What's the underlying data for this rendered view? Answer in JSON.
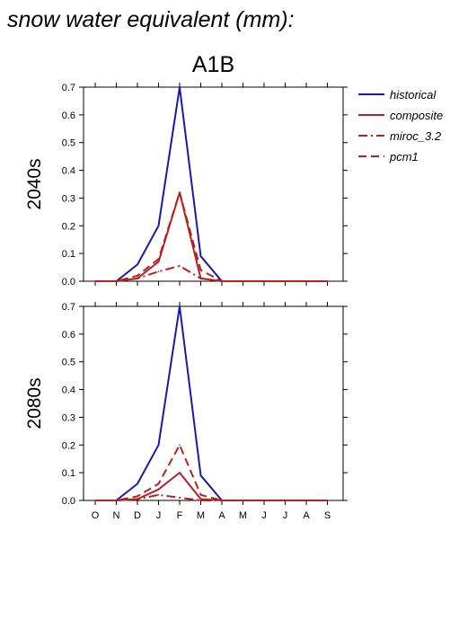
{
  "figure_title": "snow water equivalent (mm):",
  "chart_data": {
    "type": "line",
    "title": "A1B",
    "months": [
      "O",
      "N",
      "D",
      "J",
      "F",
      "M",
      "A",
      "M",
      "J",
      "J",
      "A",
      "S"
    ],
    "ylim": [
      0,
      0.7
    ],
    "yticks": [
      "0.0",
      "0.1",
      "0.2",
      "0.3",
      "0.4",
      "0.5",
      "0.6",
      "0.7"
    ],
    "legend": {
      "placement": "right",
      "entries": [
        {
          "name": "historical",
          "color": "#1a1aa6",
          "dash": "solid"
        },
        {
          "name": "composite",
          "color": "#b22222",
          "dash": "solid"
        },
        {
          "name": "miroc_3.2",
          "color": "#b22222",
          "dash": "dashdot"
        },
        {
          "name": "pcm1",
          "color": "#b22222",
          "dash": "dashed"
        }
      ]
    },
    "panels": [
      {
        "label": "2040s",
        "series": [
          {
            "name": "historical",
            "values": [
              0,
              0,
              0.06,
              0.2,
              0.7,
              0.09,
              0,
              0,
              0,
              0,
              0,
              0
            ]
          },
          {
            "name": "composite",
            "values": [
              0,
              0,
              0.01,
              0.07,
              0.32,
              0.01,
              0,
              0,
              0,
              0,
              0,
              0
            ]
          },
          {
            "name": "miroc_3.2",
            "values": [
              0,
              0,
              0.01,
              0.035,
              0.055,
              0.01,
              0,
              0,
              0,
              0,
              0,
              0
            ]
          },
          {
            "name": "pcm1",
            "values": [
              0,
              0,
              0.02,
              0.08,
              0.32,
              0.04,
              0,
              0,
              0,
              0,
              0,
              0
            ]
          }
        ]
      },
      {
        "label": "2080s",
        "series": [
          {
            "name": "historical",
            "values": [
              0,
              0,
              0.06,
              0.2,
              0.7,
              0.09,
              0,
              0,
              0,
              0,
              0,
              0
            ]
          },
          {
            "name": "composite",
            "values": [
              0,
              0,
              0.005,
              0.04,
              0.1,
              0.005,
              0,
              0,
              0,
              0,
              0,
              0
            ]
          },
          {
            "name": "miroc_3.2",
            "values": [
              0,
              0,
              0.005,
              0.02,
              0.01,
              0,
              0,
              0,
              0,
              0,
              0,
              0
            ]
          },
          {
            "name": "pcm1",
            "values": [
              0,
              0,
              0.015,
              0.06,
              0.2,
              0.02,
              0,
              0,
              0,
              0,
              0,
              0
            ]
          }
        ]
      }
    ]
  }
}
